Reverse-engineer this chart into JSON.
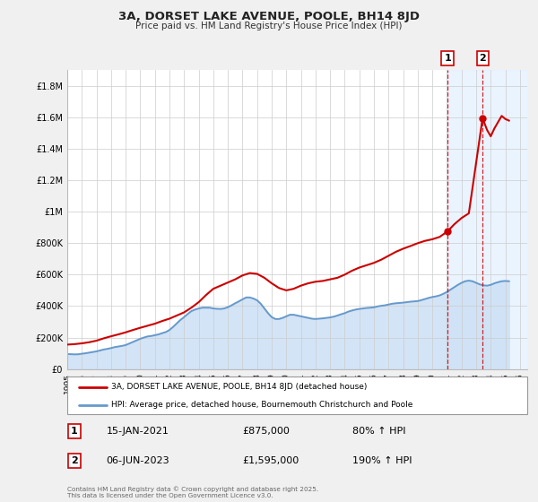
{
  "title": "3A, DORSET LAKE AVENUE, POOLE, BH14 8JD",
  "subtitle": "Price paid vs. HM Land Registry's House Price Index (HPI)",
  "ylim": [
    0,
    1900000
  ],
  "xlim_start": 1995,
  "xlim_end": 2026.5,
  "yticks": [
    0,
    200000,
    400000,
    600000,
    800000,
    1000000,
    1200000,
    1400000,
    1600000,
    1800000
  ],
  "ytick_labels": [
    "£0",
    "£200K",
    "£400K",
    "£600K",
    "£800K",
    "£1M",
    "£1.2M",
    "£1.4M",
    "£1.6M",
    "£1.8M"
  ],
  "xticks": [
    1995,
    1996,
    1997,
    1998,
    1999,
    2000,
    2001,
    2002,
    2003,
    2004,
    2005,
    2006,
    2007,
    2008,
    2009,
    2010,
    2011,
    2012,
    2013,
    2014,
    2015,
    2016,
    2017,
    2018,
    2019,
    2020,
    2021,
    2022,
    2023,
    2024,
    2025,
    2026
  ],
  "background_color": "#f0f0f0",
  "plot_bg_color": "#ffffff",
  "grid_color": "#cccccc",
  "red_line_color": "#cc0000",
  "blue_line_color": "#6699cc",
  "blue_fill_color": "#cce0f5",
  "right_shade_color": "#ddeeff",
  "marker1_x": 2021.04,
  "marker1_y": 875000,
  "marker2_x": 2023.44,
  "marker2_y": 1595000,
  "marker1_date": "15-JAN-2021",
  "marker1_price": "£875,000",
  "marker1_hpi": "80% ↑ HPI",
  "marker2_date": "06-JUN-2023",
  "marker2_price": "£1,595,000",
  "marker2_hpi": "190% ↑ HPI",
  "legend_line1": "3A, DORSET LAKE AVENUE, POOLE, BH14 8JD (detached house)",
  "legend_line2": "HPI: Average price, detached house, Bournemouth Christchurch and Poole",
  "footer": "Contains HM Land Registry data © Crown copyright and database right 2025.\nThis data is licensed under the Open Government Licence v3.0.",
  "hpi_data_x": [
    1995.0,
    1995.25,
    1995.5,
    1995.75,
    1996.0,
    1996.25,
    1996.5,
    1996.75,
    1997.0,
    1997.25,
    1997.5,
    1997.75,
    1998.0,
    1998.25,
    1998.5,
    1998.75,
    1999.0,
    1999.25,
    1999.5,
    1999.75,
    2000.0,
    2000.25,
    2000.5,
    2000.75,
    2001.0,
    2001.25,
    2001.5,
    2001.75,
    2002.0,
    2002.25,
    2002.5,
    2002.75,
    2003.0,
    2003.25,
    2003.5,
    2003.75,
    2004.0,
    2004.25,
    2004.5,
    2004.75,
    2005.0,
    2005.25,
    2005.5,
    2005.75,
    2006.0,
    2006.25,
    2006.5,
    2006.75,
    2007.0,
    2007.25,
    2007.5,
    2007.75,
    2008.0,
    2008.25,
    2008.5,
    2008.75,
    2009.0,
    2009.25,
    2009.5,
    2009.75,
    2010.0,
    2010.25,
    2010.5,
    2010.75,
    2011.0,
    2011.25,
    2011.5,
    2011.75,
    2012.0,
    2012.25,
    2012.5,
    2012.75,
    2013.0,
    2013.25,
    2013.5,
    2013.75,
    2014.0,
    2014.25,
    2014.5,
    2014.75,
    2015.0,
    2015.25,
    2015.5,
    2015.75,
    2016.0,
    2016.25,
    2016.5,
    2016.75,
    2017.0,
    2017.25,
    2017.5,
    2017.75,
    2018.0,
    2018.25,
    2018.5,
    2018.75,
    2019.0,
    2019.25,
    2019.5,
    2019.75,
    2020.0,
    2020.25,
    2020.5,
    2020.75,
    2021.0,
    2021.25,
    2021.5,
    2021.75,
    2022.0,
    2022.25,
    2022.5,
    2022.75,
    2023.0,
    2023.25,
    2023.5,
    2023.75,
    2024.0,
    2024.25,
    2024.5,
    2024.75,
    2025.0,
    2025.25
  ],
  "hpi_data_y": [
    95000,
    94000,
    93000,
    93500,
    97000,
    100000,
    104000,
    108000,
    112000,
    118000,
    124000,
    128000,
    133000,
    139000,
    143000,
    147000,
    152000,
    162000,
    172000,
    182000,
    192000,
    200000,
    207000,
    210000,
    215000,
    220000,
    228000,
    235000,
    248000,
    268000,
    290000,
    312000,
    330000,
    350000,
    368000,
    378000,
    385000,
    390000,
    390000,
    390000,
    385000,
    383000,
    382000,
    385000,
    393000,
    405000,
    418000,
    430000,
    443000,
    455000,
    455000,
    448000,
    437000,
    415000,
    385000,
    355000,
    330000,
    318000,
    318000,
    325000,
    335000,
    345000,
    345000,
    340000,
    335000,
    330000,
    325000,
    320000,
    318000,
    320000,
    322000,
    325000,
    328000,
    333000,
    340000,
    348000,
    355000,
    365000,
    372000,
    378000,
    382000,
    385000,
    388000,
    390000,
    392000,
    398000,
    402000,
    405000,
    410000,
    415000,
    418000,
    420000,
    422000,
    425000,
    428000,
    430000,
    432000,
    438000,
    445000,
    452000,
    458000,
    462000,
    468000,
    478000,
    490000,
    505000,
    520000,
    535000,
    548000,
    558000,
    562000,
    558000,
    548000,
    538000,
    532000,
    530000,
    535000,
    545000,
    552000,
    558000,
    560000,
    558000
  ],
  "price_data_x": [
    1995.0,
    1995.5,
    1996.0,
    1996.5,
    1997.0,
    1997.5,
    1998.0,
    1998.5,
    1999.0,
    1999.5,
    2000.0,
    2000.5,
    2001.0,
    2001.5,
    2002.0,
    2002.5,
    2003.0,
    2003.5,
    2004.0,
    2004.5,
    2005.0,
    2005.5,
    2006.0,
    2006.5,
    2007.0,
    2007.5,
    2008.0,
    2008.5,
    2009.0,
    2009.5,
    2010.0,
    2010.5,
    2011.0,
    2011.5,
    2012.0,
    2012.5,
    2013.0,
    2013.5,
    2014.0,
    2014.5,
    2015.0,
    2015.5,
    2016.0,
    2016.5,
    2017.0,
    2017.5,
    2018.0,
    2018.5,
    2019.0,
    2019.5,
    2020.0,
    2020.5,
    2021.04,
    2021.5,
    2022.0,
    2022.5,
    2023.44,
    2023.75,
    2024.0,
    2024.25,
    2024.5,
    2024.75,
    2025.0,
    2025.25
  ],
  "price_data_y": [
    155000,
    158000,
    163000,
    170000,
    180000,
    195000,
    208000,
    220000,
    233000,
    248000,
    262000,
    275000,
    288000,
    305000,
    320000,
    340000,
    360000,
    390000,
    425000,
    470000,
    510000,
    530000,
    550000,
    570000,
    595000,
    610000,
    605000,
    580000,
    545000,
    515000,
    500000,
    510000,
    530000,
    545000,
    555000,
    560000,
    570000,
    580000,
    600000,
    625000,
    645000,
    660000,
    675000,
    695000,
    720000,
    745000,
    765000,
    782000,
    800000,
    815000,
    825000,
    840000,
    875000,
    920000,
    960000,
    990000,
    1595000,
    1520000,
    1480000,
    1530000,
    1570000,
    1610000,
    1590000,
    1580000
  ]
}
